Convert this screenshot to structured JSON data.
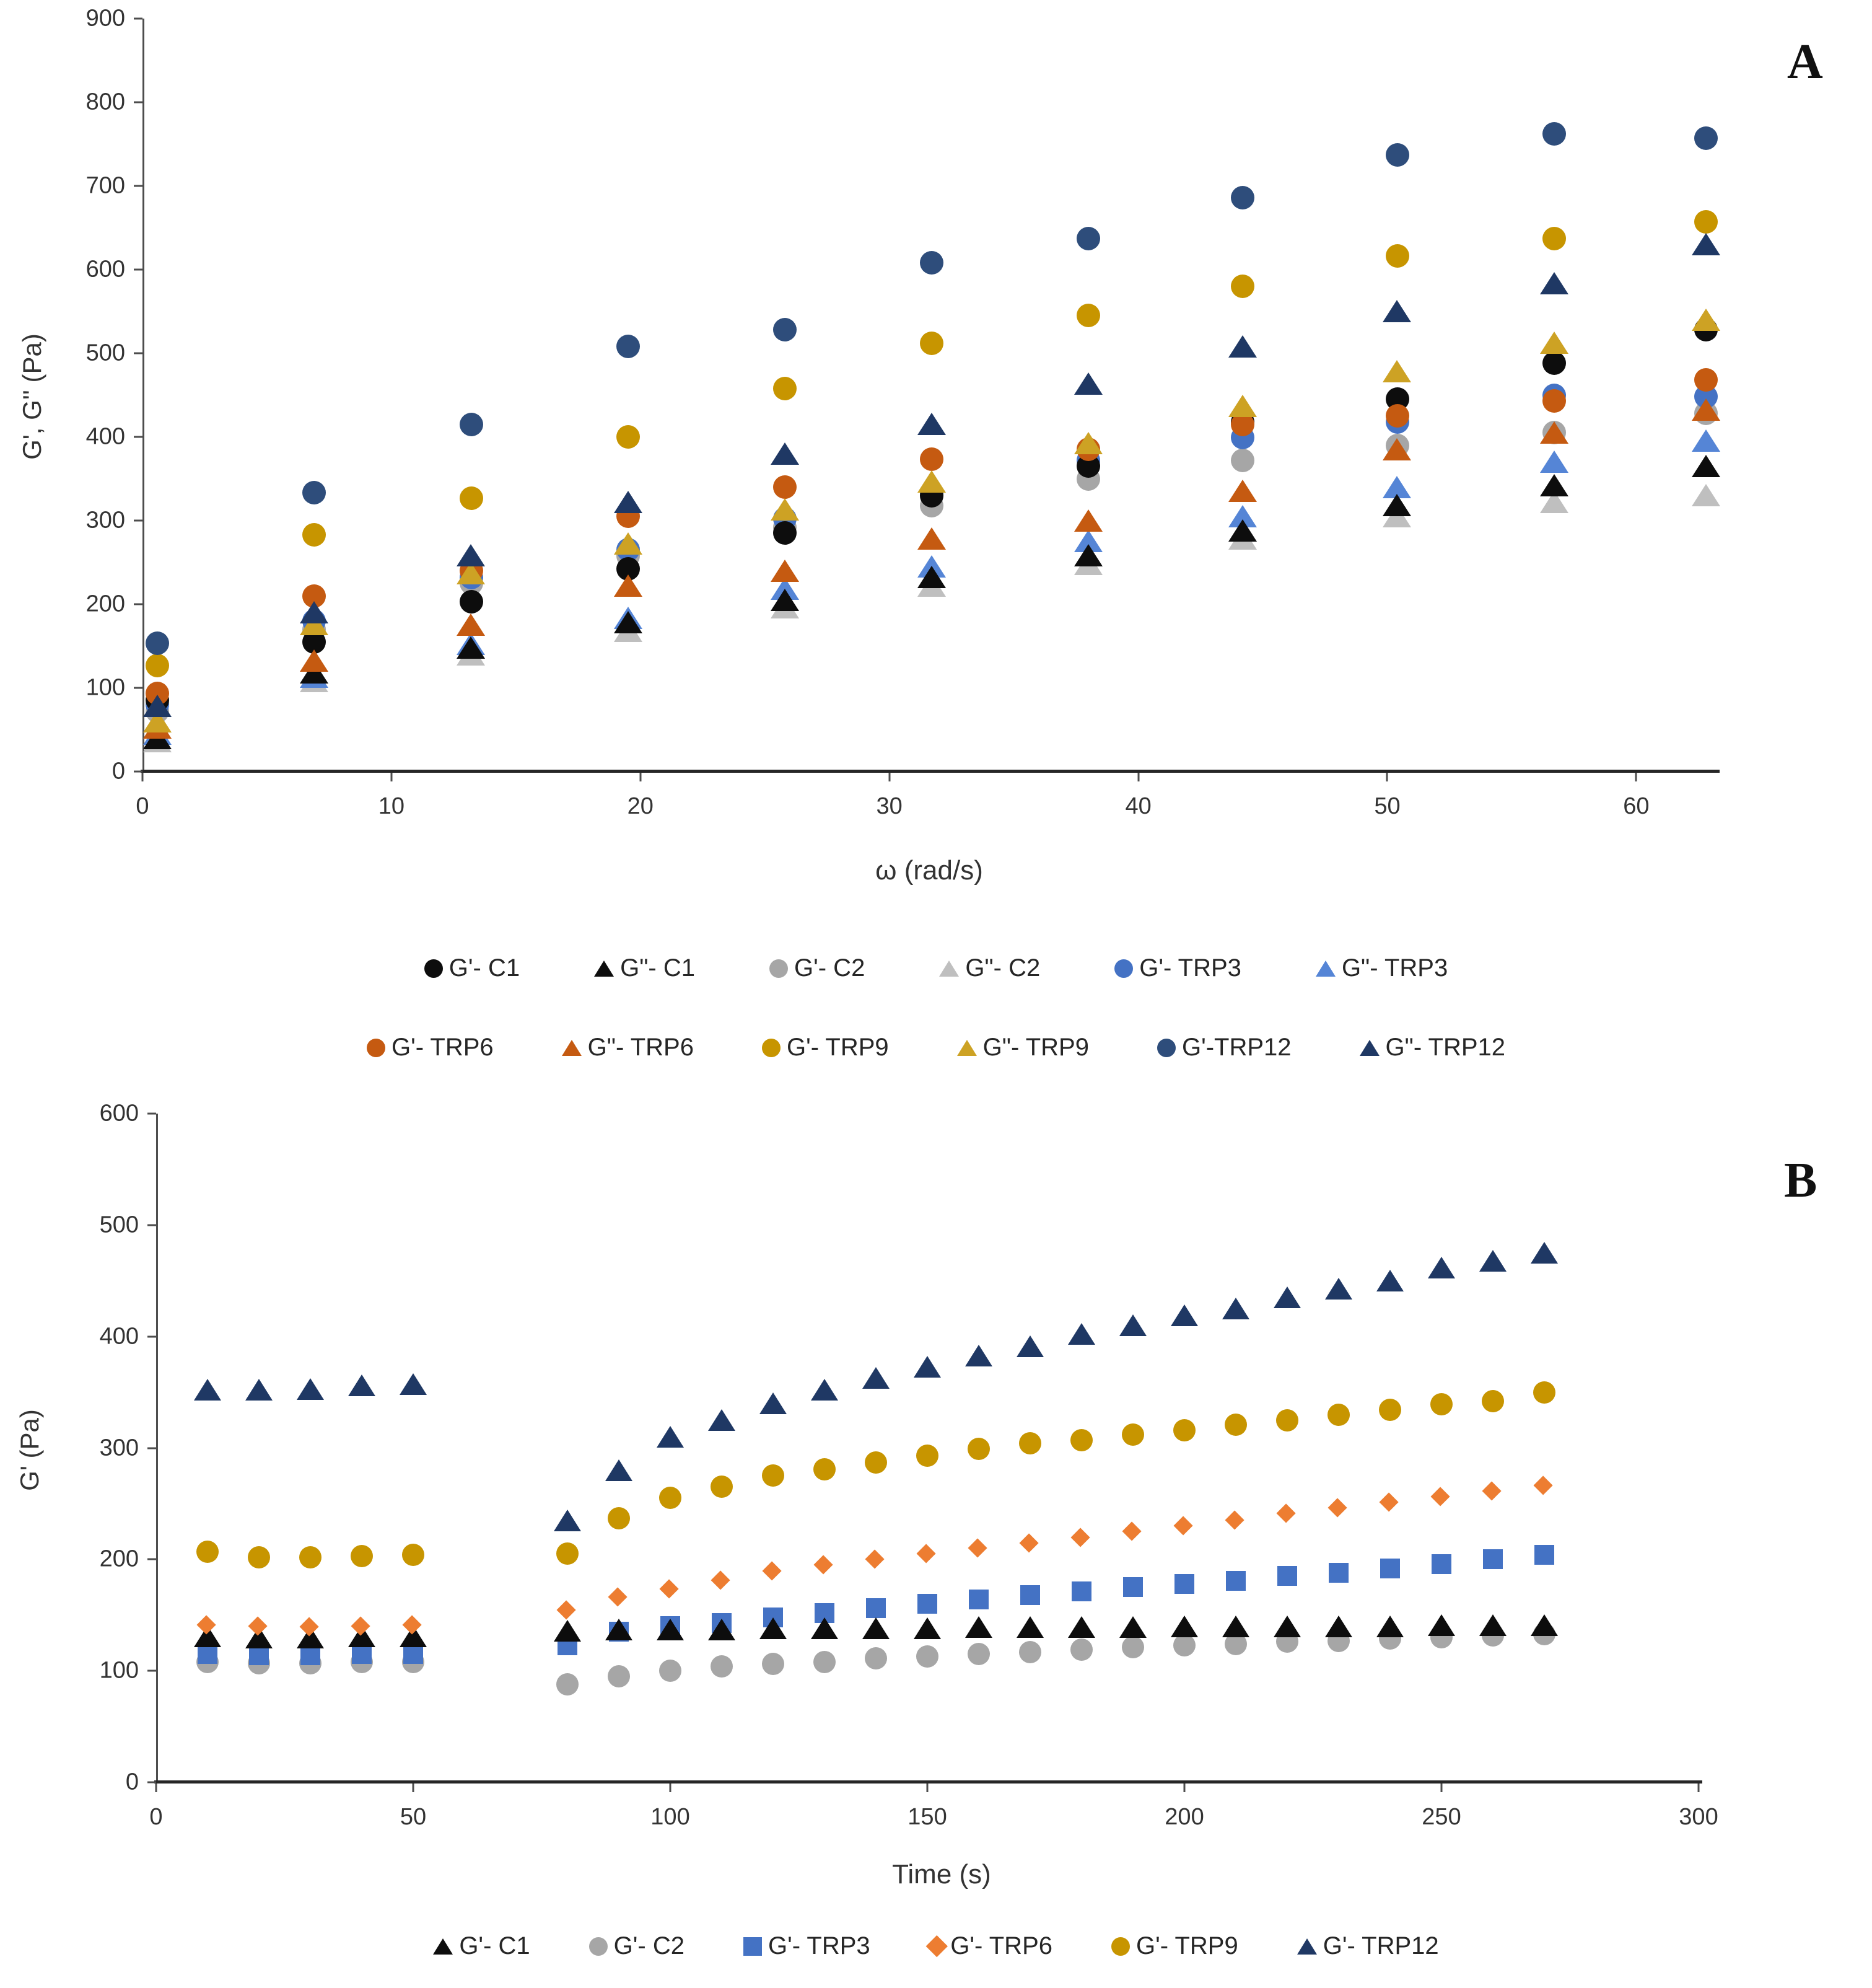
{
  "colors": {
    "black": "#0d0d0d",
    "gray": "#a6a6a6",
    "gray_light": "#bfbfbf",
    "blue": "#4472c4",
    "blue_light": "#5585d6",
    "orange_dark": "#c55a11",
    "orange": "#ed7d31",
    "gold": "#c79500",
    "gold_dark": "#cda224",
    "navy": "#2e4d7b",
    "navy_dark": "#1f3864",
    "axis": "#4d4d4d"
  },
  "panel_a": {
    "letter": "A",
    "x_title": "ω (rad/s)",
    "y_title": "G', G'' (Pa)"
  },
  "panel_b": {
    "letter": "B",
    "x_title": "Time (s)",
    "y_title": "G' (Pa)"
  },
  "chart_data": [
    {
      "type": "scatter",
      "panel": "A",
      "xlabel": "ω (rad/s)",
      "ylabel": "G', G'' (Pa)",
      "xlim": [
        0,
        63.2
      ],
      "ylim": [
        0,
        900
      ],
      "x_ticks": [
        0,
        10,
        20,
        30,
        40,
        50,
        60
      ],
      "y_ticks": [
        0,
        100,
        200,
        300,
        400,
        500,
        600,
        700,
        800,
        900
      ],
      "grid": false,
      "legend_position": "below-two-rows",
      "x": [
        0.6,
        6.9,
        13.2,
        19.5,
        25.8,
        31.7,
        38.0,
        44.2,
        50.4,
        56.7,
        62.8
      ],
      "series": [
        {
          "name": "G'- C1",
          "marker": "circle",
          "color": "#0d0d0d",
          "z": 6,
          "values": [
            85,
            155,
            203,
            242,
            285,
            330,
            365,
            418,
            445,
            488,
            528
          ]
        },
        {
          "name": "G\"- C1",
          "marker": "triangle",
          "color": "#0d0d0d",
          "z": 9,
          "values": [
            40,
            118,
            148,
            178,
            205,
            232,
            258,
            288,
            318,
            342,
            365
          ]
        },
        {
          "name": "G'- C2",
          "marker": "circle",
          "color": "#a6a6a6",
          "z": 4,
          "values": [
            72,
            170,
            225,
            258,
            292,
            318,
            350,
            372,
            390,
            405,
            428
          ]
        },
        {
          "name": "G\"- C2",
          "marker": "triangle",
          "color": "#bfbfbf",
          "z": 7,
          "values": [
            36,
            108,
            140,
            168,
            196,
            222,
            248,
            278,
            305,
            322,
            330
          ]
        },
        {
          "name": "G'- TRP3",
          "marker": "circle",
          "color": "#4472c4",
          "z": 5,
          "values": [
            80,
            180,
            232,
            265,
            302,
            332,
            372,
            399,
            418,
            450,
            448
          ]
        },
        {
          "name": "G\"- TRP3",
          "marker": "triangle",
          "color": "#5585d6",
          "z": 8,
          "values": [
            45,
            113,
            152,
            183,
            218,
            245,
            275,
            305,
            340,
            370,
            395
          ]
        },
        {
          "name": "G'- TRP6",
          "marker": "circle",
          "color": "#c55a11",
          "z": 10,
          "values": [
            93,
            210,
            240,
            305,
            340,
            373,
            385,
            415,
            425,
            443,
            468
          ]
        },
        {
          "name": "G\"- TRP6",
          "marker": "triangle",
          "color": "#c55a11",
          "z": 11,
          "values": [
            52,
            132,
            175,
            222,
            240,
            278,
            300,
            335,
            385,
            405,
            432
          ]
        },
        {
          "name": "G'- TRP9",
          "marker": "circle",
          "color": "#c79500",
          "z": 12,
          "values": [
            127,
            283,
            327,
            400,
            458,
            512,
            545,
            580,
            616,
            637,
            657
          ]
        },
        {
          "name": "G\"- TRP9",
          "marker": "triangle",
          "color": "#cda224",
          "z": 13,
          "values": [
            60,
            176,
            237,
            272,
            313,
            346,
            392,
            437,
            478,
            512,
            540
          ]
        },
        {
          "name": "G'-TRP12",
          "marker": "circle",
          "color": "#2e4d7b",
          "z": 14,
          "values": [
            153,
            333,
            415,
            508,
            528,
            608,
            637,
            686,
            737,
            762,
            757
          ]
        },
        {
          "name": "G\"- TRP12",
          "marker": "triangle",
          "color": "#1f3864",
          "z": 15,
          "values": [
            78,
            190,
            258,
            322,
            380,
            415,
            463,
            508,
            550,
            583,
            630
          ]
        }
      ]
    },
    {
      "type": "scatter",
      "panel": "B",
      "xlabel": "Time (s)",
      "ylabel": "G' (Pa)",
      "xlim": [
        0,
        300
      ],
      "ylim": [
        0,
        600
      ],
      "x_ticks": [
        0,
        50,
        100,
        150,
        200,
        250,
        300
      ],
      "y_ticks": [
        0,
        100,
        200,
        300,
        400,
        500,
        600
      ],
      "grid": false,
      "legend_position": "below-one-row",
      "x": [
        10,
        20,
        30,
        40,
        50,
        80,
        90,
        100,
        110,
        120,
        130,
        140,
        150,
        160,
        170,
        180,
        190,
        200,
        210,
        220,
        230,
        240,
        250,
        260,
        270
      ],
      "series": [
        {
          "name": "G'- C1",
          "marker": "triangle",
          "color": "#0d0d0d",
          "z": 12,
          "values": [
            131,
            130,
            130,
            131,
            131,
            136,
            137,
            137,
            137,
            138,
            138,
            138,
            138,
            139,
            139,
            139,
            139,
            140,
            140,
            140,
            140,
            140,
            141,
            141,
            141
          ]
        },
        {
          "name": "G'- C2",
          "marker": "circle",
          "color": "#a6a6a6",
          "z": 10,
          "values": [
            108,
            107,
            107,
            108,
            108,
            88,
            95,
            100,
            104,
            106,
            108,
            111,
            113,
            115,
            117,
            119,
            121,
            123,
            124,
            126,
            127,
            129,
            130,
            132,
            133
          ]
        },
        {
          "name": "G'- TRP3",
          "marker": "square",
          "color": "#4472c4",
          "z": 11,
          "values": [
            115,
            114,
            114,
            115,
            115,
            123,
            135,
            140,
            143,
            148,
            152,
            156,
            160,
            164,
            168,
            171,
            175,
            178,
            181,
            185,
            188,
            192,
            196,
            200,
            204
          ]
        },
        {
          "name": "G'- TRP6",
          "marker": "diamond",
          "color": "#ed7d31",
          "z": 13,
          "values": [
            140,
            139,
            138,
            139,
            140,
            153,
            165,
            172,
            180,
            188,
            194,
            199,
            204,
            209,
            213,
            218,
            224,
            229,
            234,
            240,
            245,
            250,
            255,
            260,
            265
          ]
        },
        {
          "name": "G'- TRP9",
          "marker": "circle",
          "color": "#c79500",
          "z": 14,
          "values": [
            207,
            202,
            202,
            203,
            204,
            205,
            237,
            255,
            265,
            275,
            281,
            287,
            293,
            299,
            304,
            307,
            312,
            316,
            321,
            325,
            330,
            334,
            339,
            342,
            350
          ]
        },
        {
          "name": "G'- TRP12",
          "marker": "triangle",
          "color": "#1f3864",
          "z": 15,
          "values": [
            352,
            352,
            353,
            356,
            357,
            235,
            280,
            310,
            325,
            340,
            352,
            363,
            373,
            383,
            391,
            402,
            410,
            419,
            425,
            435,
            443,
            450,
            462,
            468,
            475
          ]
        }
      ]
    }
  ]
}
